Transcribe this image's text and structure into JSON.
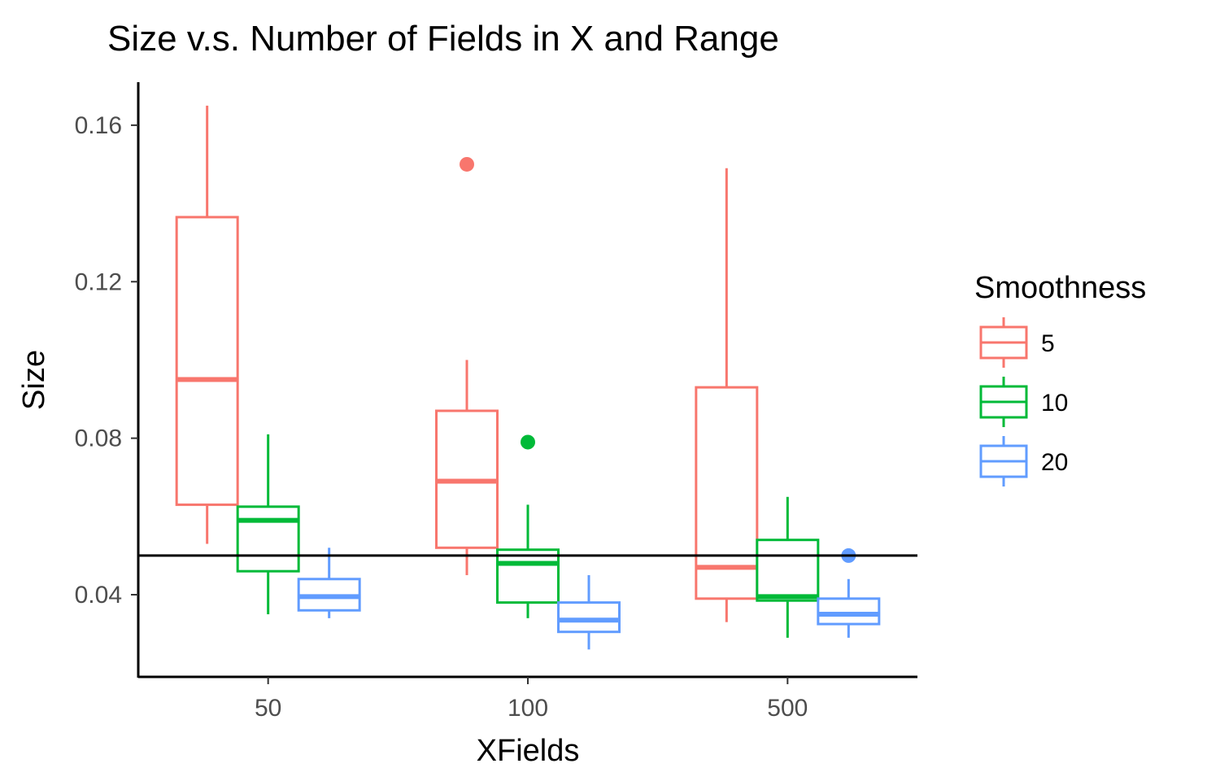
{
  "chart_data": {
    "type": "boxplot",
    "title": "Size v.s. Number of Fields in X and Range",
    "xlabel": "XFields",
    "ylabel": "Size",
    "categories": [
      "50",
      "100",
      "500"
    ],
    "yticks": [
      "0.04",
      "0.08",
      "0.12",
      "0.16"
    ],
    "ytick_values": [
      0.04,
      0.08,
      0.12,
      0.16
    ],
    "ylim": [
      0.019,
      0.171
    ],
    "grid": false,
    "reference_line": 0.05,
    "legend": {
      "title": "Smoothness",
      "placement": "right"
    },
    "series": [
      {
        "name": "5",
        "color": "#F8766D",
        "boxes": [
          {
            "whisker_low": 0.053,
            "q1": 0.063,
            "median": 0.095,
            "q3": 0.1365,
            "whisker_high": 0.165,
            "outliers": []
          },
          {
            "whisker_low": 0.045,
            "q1": 0.052,
            "median": 0.069,
            "q3": 0.087,
            "whisker_high": 0.1,
            "outliers": [
              0.15
            ]
          },
          {
            "whisker_low": 0.033,
            "q1": 0.039,
            "median": 0.047,
            "q3": 0.093,
            "whisker_high": 0.149,
            "outliers": []
          }
        ]
      },
      {
        "name": "10",
        "color": "#00BA38",
        "boxes": [
          {
            "whisker_low": 0.035,
            "q1": 0.046,
            "median": 0.059,
            "q3": 0.0625,
            "whisker_high": 0.081,
            "outliers": []
          },
          {
            "whisker_low": 0.034,
            "q1": 0.038,
            "median": 0.048,
            "q3": 0.0515,
            "whisker_high": 0.063,
            "outliers": [
              0.079
            ]
          },
          {
            "whisker_low": 0.029,
            "q1": 0.0385,
            "median": 0.0395,
            "q3": 0.054,
            "whisker_high": 0.065,
            "outliers": []
          }
        ]
      },
      {
        "name": "20",
        "color": "#619CFF",
        "boxes": [
          {
            "whisker_low": 0.034,
            "q1": 0.036,
            "median": 0.0395,
            "q3": 0.044,
            "whisker_high": 0.052,
            "outliers": []
          },
          {
            "whisker_low": 0.026,
            "q1": 0.0305,
            "median": 0.0335,
            "q3": 0.038,
            "whisker_high": 0.045,
            "outliers": []
          },
          {
            "whisker_low": 0.029,
            "q1": 0.0325,
            "median": 0.035,
            "q3": 0.039,
            "whisker_high": 0.044,
            "outliers": [
              0.05
            ]
          }
        ]
      }
    ]
  }
}
